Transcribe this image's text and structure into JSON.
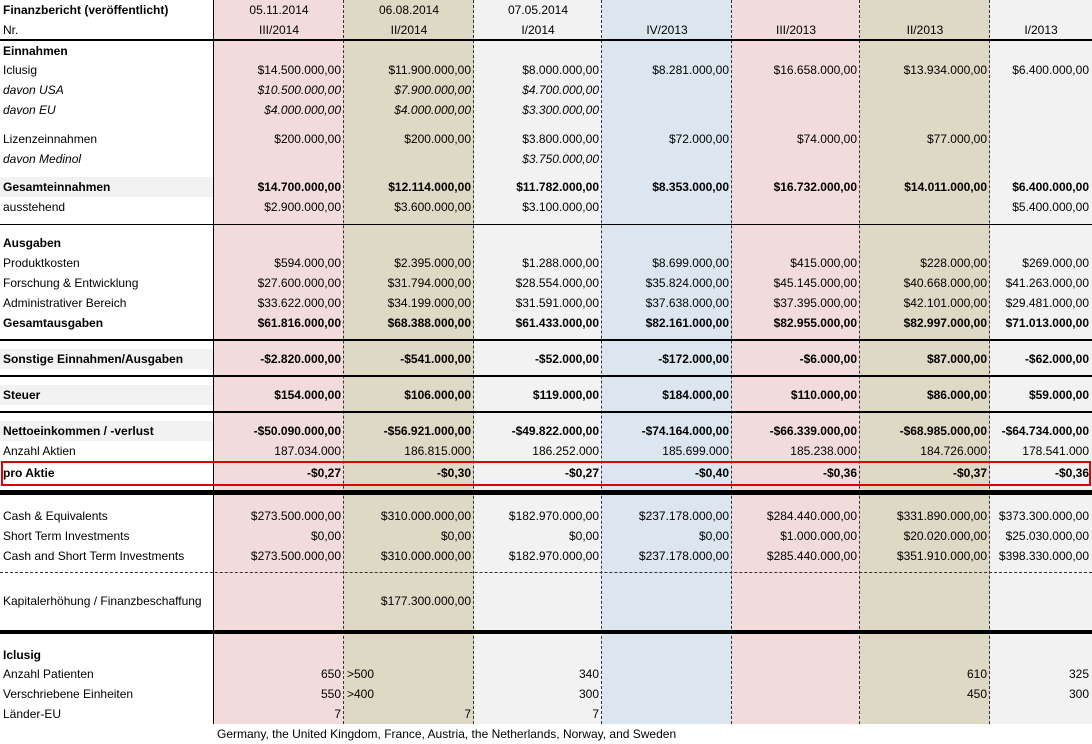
{
  "header": {
    "title": "Finanzbericht (veröffentlicht)",
    "dates": [
      "05.11.2014",
      "06.08.2014",
      "07.05.2014"
    ],
    "nr_label": "Nr.",
    "periods": [
      "III/2014",
      "II/2014",
      "I/2014",
      "IV/2013",
      "III/2013",
      "II/2013",
      "I/2013"
    ]
  },
  "rows": [
    {
      "label": "Einnahmen"
    },
    {
      "label": "Iclusig",
      "values": [
        "$14.500.000,00",
        "$11.900.000,00",
        "$8.000.000,00",
        "$8.281.000,00",
        "$16.658.000,00",
        "$13.934.000,00",
        "$6.400.000,00"
      ]
    },
    {
      "label": "davon USA",
      "values": [
        "$10.500.000,00",
        "$7.900.000,00",
        "$4.700.000,00",
        null,
        null,
        null,
        null
      ]
    },
    {
      "label": "davon EU",
      "values": [
        "$4.000.000,00",
        "$4.000.000,00",
        "$3.300.000,00",
        null,
        null,
        null,
        null
      ]
    },
    {
      "label": "Lizenzeinnahmen",
      "values": [
        "$200.000,00",
        "$200.000,00",
        "$3.800.000,00",
        "$72.000,00",
        "$74.000,00",
        "$77.000,00",
        null
      ]
    },
    {
      "label": "davon Medinol",
      "values": [
        null,
        null,
        "$3.750.000,00",
        null,
        null,
        null,
        null
      ]
    },
    {
      "label": "Gesamteinnahmen",
      "values": [
        "$14.700.000,00",
        "$12.114.000,00",
        "$11.782.000,00",
        "$8.353.000,00",
        "$16.732.000,00",
        "$14.011.000,00",
        "$6.400.000,00"
      ]
    },
    {
      "label": "ausstehend",
      "values": [
        "$2.900.000,00",
        "$3.600.000,00",
        "$3.100.000,00",
        null,
        null,
        null,
        "$5.400.000,00"
      ]
    },
    {
      "label": "Ausgaben"
    },
    {
      "label": "Produktkosten",
      "values": [
        "$594.000,00",
        "$2.395.000,00",
        "$1.288.000,00",
        "$8.699.000,00",
        "$415.000,00",
        "$228.000,00",
        "$269.000,00"
      ]
    },
    {
      "label": "Forschung & Entwicklung",
      "values": [
        "$27.600.000,00",
        "$31.794.000,00",
        "$28.554.000,00",
        "$35.824.000,00",
        "$45.145.000,00",
        "$40.668.000,00",
        "$41.263.000,00"
      ]
    },
    {
      "label": "Administrativer Bereich",
      "values": [
        "$33.622.000,00",
        "$34.199.000,00",
        "$31.591.000,00",
        "$37.638.000,00",
        "$37.395.000,00",
        "$42.101.000,00",
        "$29.481.000,00"
      ]
    },
    {
      "label": "Gesamtausgaben",
      "values": [
        "$61.816.000,00",
        "$68.388.000,00",
        "$61.433.000,00",
        "$82.161.000,00",
        "$82.955.000,00",
        "$82.997.000,00",
        "$71.013.000,00"
      ]
    },
    {
      "label": "Sonstige Einnahmen/Ausgaben",
      "values": [
        "-$2.820.000,00",
        "-$541.000,00",
        "-$52.000,00",
        "-$172.000,00",
        "-$6.000,00",
        "$87.000,00",
        "-$62.000,00"
      ]
    },
    {
      "label": "Steuer",
      "values": [
        "$154.000,00",
        "$106.000,00",
        "$119.000,00",
        "$184.000,00",
        "$110.000,00",
        "$86.000,00",
        "$59.000,00"
      ]
    },
    {
      "label": "Nettoeinkommen / -verlust",
      "values": [
        "-$50.090.000,00",
        "-$56.921.000,00",
        "-$49.822.000,00",
        "-$74.164.000,00",
        "-$66.339.000,00",
        "-$68.985.000,00",
        "-$64.734.000,00"
      ]
    },
    {
      "label": "Anzahl Aktien",
      "values": [
        "187.034.000",
        "186.815.000",
        "186.252.000",
        "185.699.000",
        "185.238.000",
        "184.726.000",
        "178.541.000"
      ]
    },
    {
      "label": "pro Aktie",
      "values": [
        "-$0,27",
        "-$0,30",
        "-$0,27",
        "-$0,40",
        "-$0,36",
        "-$0,37",
        "-$0,36"
      ]
    },
    {
      "label": "Cash & Equivalents",
      "values": [
        "$273.500.000,00",
        "$310.000.000,00",
        "$182.970.000,00",
        "$237.178.000,00",
        "$284.440.000,00",
        "$331.890.000,00",
        "$373.300.000,00"
      ]
    },
    {
      "label": "Short Term Investments",
      "values": [
        "$0,00",
        "$0,00",
        "$0,00",
        "$0,00",
        "$1.000.000,00",
        "$20.020.000,00",
        "$25.030.000,00"
      ]
    },
    {
      "label": "Cash and Short Term Investments",
      "values": [
        "$273.500.000,00",
        "$310.000.000,00",
        "$182.970.000,00",
        "$237.178.000,00",
        "$285.440.000,00",
        "$351.910.000,00",
        "$398.330.000,00"
      ]
    },
    {
      "label": "Kapitalerhöhung / Finanzbeschaffung",
      "values": [
        null,
        "$177.300.000,00",
        null,
        null,
        null,
        null,
        null
      ]
    },
    {
      "label": "Iclusig"
    },
    {
      "label": "Anzahl Patienten",
      "values": [
        "650",
        ">500",
        "340",
        null,
        null,
        "610",
        "325"
      ]
    },
    {
      "label": "Verschriebene Einheiten",
      "values": [
        "550",
        ">400",
        "300",
        null,
        null,
        "450",
        "300"
      ]
    },
    {
      "label": "Länder-EU",
      "values": [
        "7",
        "7",
        "7",
        null,
        null,
        null,
        null
      ]
    }
  ],
  "note": "Germany, the United Kingdom, France, Austria, the Netherlands, Norway, and Sweden"
}
